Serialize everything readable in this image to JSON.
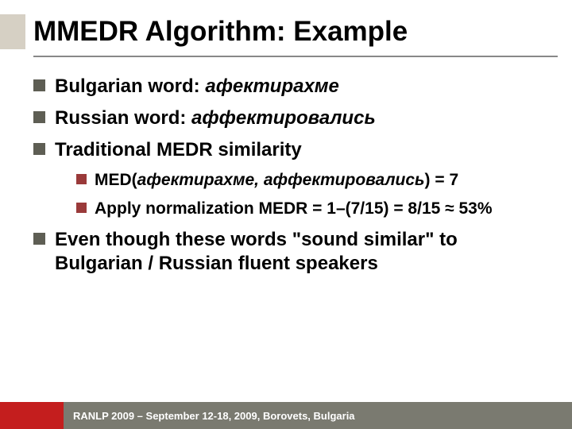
{
  "title": "MMEDR Algorithm: Example",
  "bullets": [
    {
      "label": "Bulgarian word: ",
      "italic": "афектирахме"
    },
    {
      "label": "Russian word: ",
      "italic": "аффектировались"
    },
    {
      "label": "Traditional MEDR similarity"
    }
  ],
  "sub": [
    {
      "pre": "MED(",
      "italic": "афектирахме, аффектировались",
      "post": ") = 7"
    },
    {
      "text": "Apply normalization MEDR = 1–(7/15) = 8/15 ≈ 53%"
    }
  ],
  "last": "Even though these words \"sound similar\" to Bulgarian / Russian fluent speakers",
  "footer": "RANLP 2009 – September 12-18, 2009, Borovets, Bulgaria",
  "colors": {
    "title_bar": "#d6d0c4",
    "bullet_l1": "#5e5e54",
    "bullet_l2": "#9a3a3a",
    "footer_red": "#c41e1e",
    "footer_gray": "#7a7a70"
  }
}
